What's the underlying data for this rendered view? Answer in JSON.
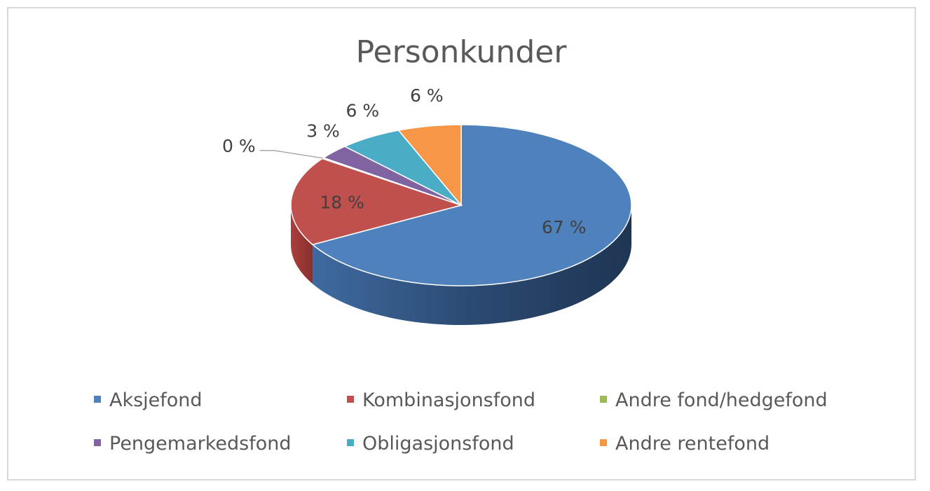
{
  "chart_data": {
    "type": "pie",
    "style": "3d",
    "title": "Personkunder",
    "legend_position": "bottom",
    "series": [
      {
        "name": "Aksjefond",
        "value": 67,
        "label": "67 %",
        "color": "#4f81bd"
      },
      {
        "name": "Kombinasjonsfond",
        "value": 18,
        "label": "18 %",
        "color": "#c0504d"
      },
      {
        "name": "Andre fond/hedgefond",
        "value": 0.2,
        "label": "0 %",
        "color": "#9bbb59"
      },
      {
        "name": "Pengemarkedsfond",
        "value": 3,
        "label": "3 %",
        "color": "#8064a2"
      },
      {
        "name": "Obligasjonsfond",
        "value": 6,
        "label": "6 %",
        "color": "#4bacc6"
      },
      {
        "name": "Andre rentefond",
        "value": 6,
        "label": "6 %",
        "color": "#f79646"
      }
    ]
  }
}
